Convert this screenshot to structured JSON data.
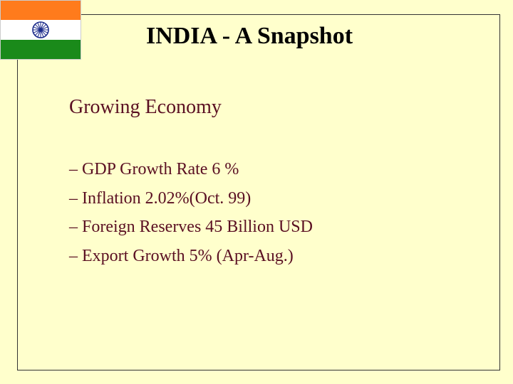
{
  "slide": {
    "title": "INDIA - A Snapshot",
    "heading": "Growing Economy",
    "bullets": [
      "– GDP Growth Rate 6 %",
      "– Inflation 2.02%(Oct. 99)",
      "– Foreign Reserves 45 Billion USD",
      "– Export Growth 5% (Apr-Aug.)"
    ]
  },
  "flag": {
    "icon": "indian-flag-icon",
    "colors": {
      "saffron": "#ff7b1c",
      "white": "#ffffff",
      "green": "#1a8a1a",
      "chakra": "#1a2a8a"
    }
  },
  "colors": {
    "background": "#ffffcc",
    "heading_text": "#5a0f22",
    "title_text": "#000000"
  }
}
